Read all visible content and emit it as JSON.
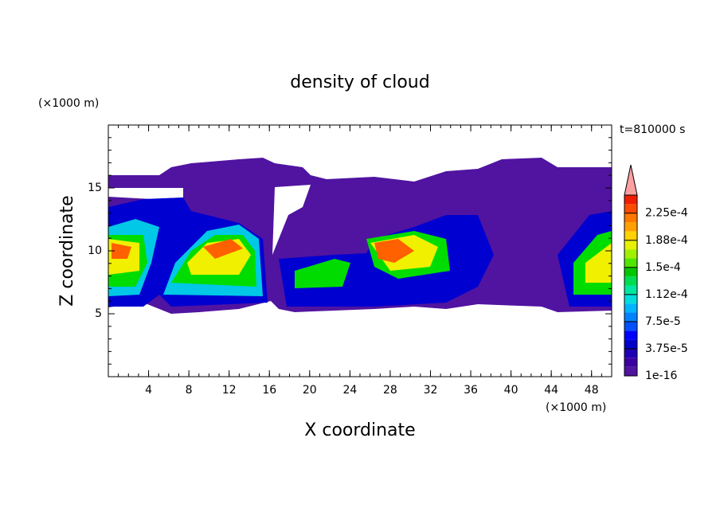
{
  "chart_data": {
    "type": "contour",
    "title": "density of cloud",
    "x_label": "X coordinate",
    "y_label": "Z coordinate",
    "x_unit": "(×1000 m)",
    "y_unit": "(×1000 m)",
    "annotation": "t=810000 s",
    "xlim": [
      0,
      50
    ],
    "ylim": [
      0,
      20
    ],
    "xticks": [
      4,
      8,
      12,
      16,
      20,
      24,
      28,
      32,
      36,
      40,
      44,
      48
    ],
    "yticks": [
      5,
      10,
      15
    ],
    "colorbar": {
      "lim": [
        0,
        0.00025
      ],
      "ticks": [
        1e-16,
        {
          "value": 3.75e-05,
          "label": "3.75e-5"
        },
        {
          "value": 7.5e-05,
          "label": "7.5e-5"
        },
        {
          "value": 0.0001125,
          "label": "1.12e-4"
        },
        {
          "value": 0.00015,
          "label": "1.5e-4"
        },
        {
          "value": 0.0001875,
          "label": "1.88e-4"
        },
        {
          "value": 0.000225,
          "label": "2.25e-4"
        }
      ],
      "colors": [
        "#5014a0",
        "#3c00a0",
        "#1e00b4",
        "#0000c8",
        "#0000ff",
        "#0050ff",
        "#0082ff",
        "#00b4ff",
        "#00dcdc",
        "#00e6a0",
        "#00dc50",
        "#00c800",
        "#50e600",
        "#a0f000",
        "#e6f000",
        "#ffd200",
        "#ffa000",
        "#ff7800",
        "#ff4b00",
        "#f01e00"
      ],
      "extend_color": "#ffa0a0"
    }
  }
}
